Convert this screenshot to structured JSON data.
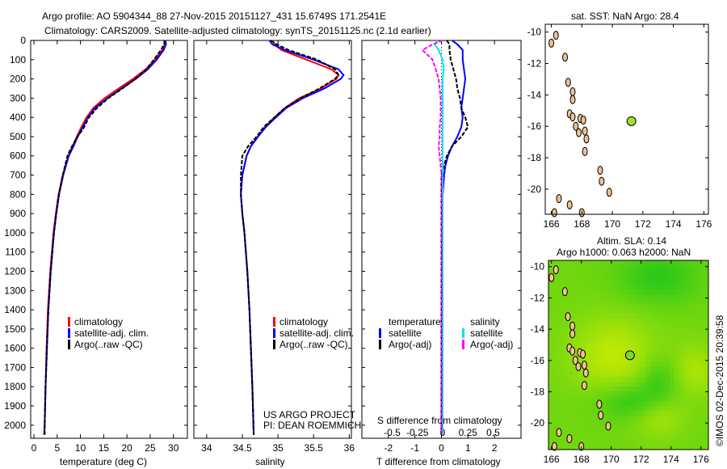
{
  "header": {
    "line1": "Argo profile: AO 5904344_88 27-Nov-2015 20151127_431 15.6749S 171.2541E",
    "line2": "Climatology: CARS2009. Satellite-adjusted climatology: synTS_20151125.nc (2.1d earlier)"
  },
  "credit": "©IMOS 02-Dec-2015 20:39:58",
  "colors": {
    "climatology": "#ff0000",
    "satellite": "#0000ff",
    "argo": "#000000",
    "sal_satellite": "#00e5ee",
    "sal_argo": "#ff00ff",
    "land": "#f0c090"
  },
  "chart_data": [
    {
      "type": "line",
      "id": "temperature",
      "xlabel": "temperature (deg C)",
      "xlim": [
        -0.7,
        33
      ],
      "ylim": [
        0,
        2068
      ],
      "yticks": [
        0,
        100,
        200,
        300,
        400,
        500,
        600,
        700,
        800,
        900,
        1000,
        1100,
        1200,
        1300,
        1400,
        1500,
        1600,
        1700,
        1800,
        1900,
        2000
      ],
      "xticks": [
        0,
        5,
        10,
        15,
        20,
        25,
        30
      ],
      "legend": [
        "climatology",
        "satellite-adj. clim.",
        "Argo(..raw -QC)"
      ],
      "depth": [
        0,
        20,
        50,
        100,
        150,
        200,
        250,
        300,
        350,
        400,
        450,
        500,
        550,
        600,
        700,
        800,
        900,
        1000,
        1200,
        1400,
        1600,
        1800,
        2000,
        2050
      ],
      "series": [
        {
          "name": "climatology",
          "values": [
            28.0,
            28.2,
            27.6,
            26.0,
            24.0,
            21.3,
            18.2,
            15.2,
            12.8,
            11.3,
            10.2,
            9.2,
            8.3,
            7.4,
            6.2,
            5.3,
            4.7,
            4.2,
            3.5,
            3.0,
            2.7,
            2.5,
            2.3,
            2.2
          ]
        },
        {
          "name": "satellite",
          "values": [
            28.3,
            28.4,
            27.9,
            26.4,
            24.5,
            21.9,
            18.8,
            15.8,
            13.2,
            11.6,
            10.5,
            9.4,
            8.5,
            7.5,
            6.3,
            5.4,
            4.8,
            4.3,
            3.6,
            3.1,
            2.8,
            2.5,
            2.3,
            2.2
          ]
        },
        {
          "name": "argo",
          "values": [
            28.1,
            28.0,
            27.3,
            25.8,
            24.2,
            21.8,
            19.0,
            16.0,
            13.6,
            11.8,
            10.8,
            9.4,
            8.2,
            7.2,
            6.2,
            5.4,
            4.8,
            4.3,
            3.6,
            3.1,
            2.8,
            2.5,
            2.3,
            2.3
          ]
        }
      ]
    },
    {
      "type": "line",
      "id": "salinity",
      "xlabel": "salinity",
      "xlim": [
        33.82,
        36.03
      ],
      "ylim": [
        0,
        2068
      ],
      "xticks": [
        34,
        34.5,
        35,
        35.5,
        36
      ],
      "legend": [
        "climatology",
        "satellite-adj. clim.",
        "Argo(..raw -QC)"
      ],
      "annotation": [
        "US ARGO PROJECT",
        "PI: DEAN ROEMMICH"
      ],
      "depth": [
        0,
        20,
        50,
        100,
        150,
        180,
        200,
        250,
        300,
        350,
        400,
        450,
        500,
        550,
        600,
        700,
        800,
        900,
        1000,
        1200,
        1400,
        1600,
        1800,
        2050
      ],
      "series": [
        {
          "name": "climatology",
          "values": [
            34.92,
            34.95,
            35.05,
            35.4,
            35.75,
            35.85,
            35.82,
            35.6,
            35.3,
            35.1,
            34.95,
            34.82,
            34.72,
            34.62,
            34.56,
            34.5,
            34.48,
            34.5,
            34.53,
            34.57,
            34.6,
            34.62,
            34.64,
            34.66
          ]
        },
        {
          "name": "satellite",
          "values": [
            34.88,
            34.92,
            35.1,
            35.5,
            35.85,
            35.92,
            35.88,
            35.65,
            35.35,
            35.12,
            34.97,
            34.83,
            34.72,
            34.62,
            34.56,
            34.5,
            34.48,
            34.5,
            34.53,
            34.57,
            34.6,
            34.62,
            34.64,
            34.66
          ]
        },
        {
          "name": "argo",
          "values": [
            34.9,
            34.98,
            35.15,
            35.55,
            35.8,
            35.85,
            35.8,
            35.58,
            35.32,
            35.1,
            34.95,
            34.8,
            34.7,
            34.58,
            34.5,
            34.48,
            34.48,
            34.5,
            34.53,
            34.57,
            34.6,
            34.62,
            34.64,
            34.66
          ]
        }
      ]
    },
    {
      "type": "line",
      "id": "difference",
      "xlabel": "T difference from climatology",
      "xlabel2": "S difference from climatology",
      "xlim": [
        -3,
        3
      ],
      "ylim": [
        0,
        2068
      ],
      "xticks": [
        -2,
        -1,
        0,
        1,
        2
      ],
      "xticks2": [
        -0.5,
        -0.25,
        0,
        0.25,
        0.5
      ],
      "legend": {
        "temperature_title": "temperature",
        "salinity_title": "salinity",
        "temperature": [
          "satellite",
          "Argo(-adj)"
        ],
        "salinity": [
          "satellite",
          "Argo(-adj)"
        ]
      },
      "depth": [
        0,
        20,
        50,
        100,
        150,
        200,
        250,
        300,
        350,
        400,
        450,
        500,
        550,
        600,
        650,
        700,
        800,
        1000,
        1500,
        2050
      ],
      "series": [
        {
          "name": "T satellite",
          "values": [
            0.4,
            0.6,
            0.8,
            0.8,
            0.85,
            0.9,
            0.85,
            0.8,
            0.75,
            0.8,
            0.75,
            0.6,
            0.4,
            0.25,
            0.15,
            0.1,
            0.05,
            0.02,
            0.01,
            0
          ]
        },
        {
          "name": "T Argo",
          "values": [
            0.2,
            0.3,
            0.3,
            0.35,
            0.45,
            0.55,
            0.6,
            0.7,
            0.75,
            0.9,
            1.0,
            0.75,
            0.4,
            0.2,
            0.1,
            0.0,
            0.0,
            0.0,
            0.0,
            0.0
          ]
        },
        {
          "name": "S satellite",
          "values": [
            -0.05,
            -0.08,
            -0.04,
            0,
            0.01,
            0,
            0,
            0,
            0,
            0,
            0,
            0,
            0,
            0,
            0,
            0,
            0,
            0,
            0,
            0
          ]
        },
        {
          "name": "S Argo",
          "values": [
            0.0,
            -0.1,
            -0.2,
            -0.1,
            -0.07,
            -0.04,
            -0.03,
            -0.02,
            -0.02,
            -0.02,
            -0.03,
            -0.03,
            -0.04,
            -0.03,
            -0.02,
            -0.01,
            -0.01,
            -0.01,
            -0.01,
            -0.01
          ]
        }
      ]
    },
    {
      "type": "heatmap",
      "id": "sst-map",
      "title": "sat. SST: NaN Argo: 28.4",
      "xlim": [
        165.6,
        176.3
      ],
      "ylim": [
        -21.6,
        -9.5
      ],
      "xticks": [
        166,
        168,
        170,
        172,
        174,
        176
      ],
      "yticks": [
        -10,
        -12,
        -14,
        -16,
        -18,
        -20
      ],
      "argo_position": [
        171.25,
        -15.67
      ]
    },
    {
      "type": "heatmap",
      "id": "sla-map",
      "title": "Altim. SLA: 0.14",
      "subtitle": "Argo h1000: 0.063 h2000: NaN",
      "xlim": [
        165.8,
        176.5
      ],
      "ylim": [
        -21.7,
        -9.6
      ],
      "xticks": [
        166,
        168,
        170,
        172,
        174,
        176
      ],
      "yticks": [
        -10,
        -12,
        -14,
        -16,
        -18,
        -20
      ],
      "argo_position": [
        171.25,
        -15.67
      ]
    }
  ]
}
